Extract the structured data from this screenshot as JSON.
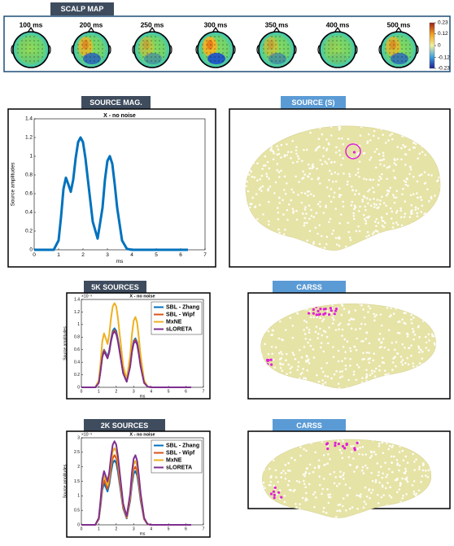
{
  "tabs": {
    "scalp_map": "SCALP MAP",
    "source_mag": "SOURCE MAG.",
    "source_s": "SOURCE (S)",
    "sources_5k": "5K SOURCES",
    "carss_5k": "CARSS",
    "sources_2k": "2K SOURCES",
    "carss_2k": "CARSS"
  },
  "scalp_map": {
    "times": [
      "100 ms",
      "200 ms",
      "250 ms",
      "300 ms",
      "350 ms",
      "400 ms",
      "500 ms"
    ],
    "colorbar_lim": [
      -0.23,
      0.23
    ],
    "colorbar_ticks": [
      0.23,
      0.12,
      0,
      -0.12,
      -0.23
    ]
  },
  "chart_data": [
    {
      "type": "line",
      "title": "X - no noise",
      "xlabel": "ms",
      "ylabel": "Source amplitudes",
      "x": [
        0,
        0.5,
        0.8,
        1.0,
        1.1,
        1.2,
        1.3,
        1.4,
        1.5,
        1.6,
        1.7,
        1.8,
        1.9,
        2.0,
        2.1,
        2.2,
        2.4,
        2.6,
        2.8,
        2.9,
        3.0,
        3.1,
        3.2,
        3.3,
        3.4,
        3.6,
        3.8,
        4.0,
        4.5,
        5,
        6,
        6.3
      ],
      "series": [
        {
          "color": "#0072bd",
          "values": [
            0,
            0,
            0,
            0.1,
            0.35,
            0.65,
            0.77,
            0.7,
            0.62,
            0.75,
            0.98,
            1.15,
            1.2,
            1.15,
            0.98,
            0.75,
            0.3,
            0.12,
            0.45,
            0.75,
            0.95,
            1.0,
            0.92,
            0.7,
            0.45,
            0.1,
            0.01,
            0,
            0,
            0,
            0,
            0
          ]
        }
      ],
      "xlim": [
        0,
        7
      ],
      "ylim": [
        0,
        1.4
      ],
      "xticks": [
        0,
        1,
        2,
        3,
        4,
        5,
        6,
        7
      ],
      "yticks": [
        0,
        0.2,
        0.4,
        0.6,
        0.8,
        1,
        1.2,
        1.4
      ]
    },
    {
      "type": "line",
      "title": "X - no noise",
      "xlabel": "ms",
      "ylabel": "Source amplitudes",
      "y_multiplier": "×10⁻³",
      "legend": "upper right",
      "x": [
        0,
        0.5,
        0.8,
        1.0,
        1.1,
        1.2,
        1.3,
        1.4,
        1.5,
        1.6,
        1.7,
        1.8,
        1.9,
        2.0,
        2.1,
        2.2,
        2.4,
        2.6,
        2.8,
        2.9,
        3.0,
        3.1,
        3.2,
        3.3,
        3.4,
        3.6,
        3.8,
        4.0,
        4.5,
        5,
        6,
        6.3
      ],
      "series": [
        {
          "name": "SBL - Zhang",
          "color": "#0072bd",
          "values": [
            0,
            0,
            0,
            0.08,
            0.27,
            0.51,
            0.6,
            0.55,
            0.48,
            0.59,
            0.76,
            0.9,
            0.94,
            0.9,
            0.76,
            0.59,
            0.23,
            0.09,
            0.35,
            0.59,
            0.74,
            0.78,
            0.72,
            0.55,
            0.35,
            0.08,
            0.01,
            0,
            0,
            0,
            0,
            0
          ]
        },
        {
          "name": "SBL - Wipf",
          "color": "#d95319",
          "values": [
            0,
            0,
            0,
            0.08,
            0.27,
            0.49,
            0.59,
            0.53,
            0.47,
            0.57,
            0.74,
            0.87,
            0.91,
            0.87,
            0.74,
            0.57,
            0.23,
            0.09,
            0.34,
            0.57,
            0.72,
            0.76,
            0.7,
            0.53,
            0.34,
            0.08,
            0.01,
            0,
            0,
            0,
            0,
            0
          ]
        },
        {
          "name": "MxNE",
          "color": "#edb120",
          "values": [
            0,
            0,
            0,
            0.11,
            0.39,
            0.73,
            0.86,
            0.78,
            0.69,
            0.84,
            1.1,
            1.29,
            1.34,
            1.29,
            1.1,
            0.84,
            0.34,
            0.13,
            0.5,
            0.84,
            1.06,
            1.12,
            1.03,
            0.78,
            0.5,
            0.11,
            0.01,
            0,
            0,
            0,
            0,
            0
          ]
        },
        {
          "name": "sLORETA",
          "color": "#7e2f8e",
          "values": [
            0,
            0,
            0,
            0.07,
            0.26,
            0.48,
            0.57,
            0.52,
            0.46,
            0.56,
            0.73,
            0.85,
            0.89,
            0.85,
            0.73,
            0.56,
            0.22,
            0.09,
            0.33,
            0.56,
            0.7,
            0.74,
            0.68,
            0.52,
            0.33,
            0.07,
            0.01,
            0,
            0,
            0,
            0,
            0
          ]
        }
      ],
      "xlim": [
        0,
        7
      ],
      "ylim": [
        0,
        1.4
      ],
      "xticks": [
        0,
        1,
        2,
        3,
        4,
        5,
        6,
        7
      ],
      "yticks": [
        0,
        0.2,
        0.4,
        0.6,
        0.8,
        1,
        1.2,
        1.4
      ]
    },
    {
      "type": "line",
      "title": "X - no noise",
      "xlabel": "ms",
      "ylabel": "Source amplitudes",
      "y_multiplier": "×10⁻³",
      "legend": "upper right",
      "x": [
        0,
        0.5,
        0.8,
        1.0,
        1.1,
        1.2,
        1.3,
        1.4,
        1.5,
        1.6,
        1.7,
        1.8,
        1.9,
        2.0,
        2.1,
        2.2,
        2.4,
        2.6,
        2.8,
        2.9,
        3.0,
        3.1,
        3.2,
        3.3,
        3.4,
        3.6,
        3.8,
        4.0,
        4.5,
        5,
        6,
        6.3
      ],
      "series": [
        {
          "name": "SBL - Zhang",
          "color": "#0072bd",
          "values": [
            0,
            0,
            0,
            0.19,
            0.65,
            1.2,
            1.42,
            1.3,
            1.15,
            1.39,
            1.81,
            2.13,
            2.22,
            2.13,
            1.81,
            1.39,
            0.56,
            0.22,
            0.83,
            1.39,
            1.76,
            1.85,
            1.7,
            1.3,
            0.83,
            0.19,
            0.02,
            0,
            0,
            0,
            0,
            0
          ]
        },
        {
          "name": "SBL - Wipf",
          "color": "#d95319",
          "values": [
            0,
            0,
            0,
            0.2,
            0.7,
            1.3,
            1.54,
            1.4,
            1.24,
            1.5,
            1.96,
            2.3,
            2.4,
            2.3,
            1.96,
            1.5,
            0.6,
            0.24,
            0.9,
            1.5,
            1.9,
            2.0,
            1.84,
            1.4,
            0.9,
            0.2,
            0.02,
            0,
            0,
            0,
            0,
            0
          ]
        },
        {
          "name": "MxNE",
          "color": "#edb120",
          "values": [
            0,
            0,
            0,
            0.22,
            0.77,
            1.43,
            1.69,
            1.54,
            1.36,
            1.65,
            2.16,
            2.53,
            2.64,
            2.53,
            2.16,
            1.65,
            0.66,
            0.26,
            0.99,
            1.65,
            2.09,
            2.2,
            2.02,
            1.54,
            0.99,
            0.22,
            0.02,
            0,
            0,
            0,
            0,
            0
          ]
        },
        {
          "name": "sLORETA",
          "color": "#7e2f8e",
          "values": [
            0,
            0,
            0,
            0.24,
            0.84,
            1.56,
            1.85,
            1.68,
            1.49,
            1.8,
            2.35,
            2.76,
            2.88,
            2.76,
            2.35,
            1.8,
            0.72,
            0.29,
            1.08,
            1.8,
            2.28,
            2.4,
            2.21,
            1.68,
            1.08,
            0.24,
            0.02,
            0,
            0,
            0,
            0,
            0
          ]
        }
      ],
      "xlim": [
        0,
        7
      ],
      "ylim": [
        0,
        3
      ],
      "xticks": [
        0,
        1,
        2,
        3,
        4,
        5,
        6,
        7
      ],
      "yticks": [
        0,
        0.5,
        1,
        1.5,
        2,
        2.5,
        3
      ]
    }
  ]
}
